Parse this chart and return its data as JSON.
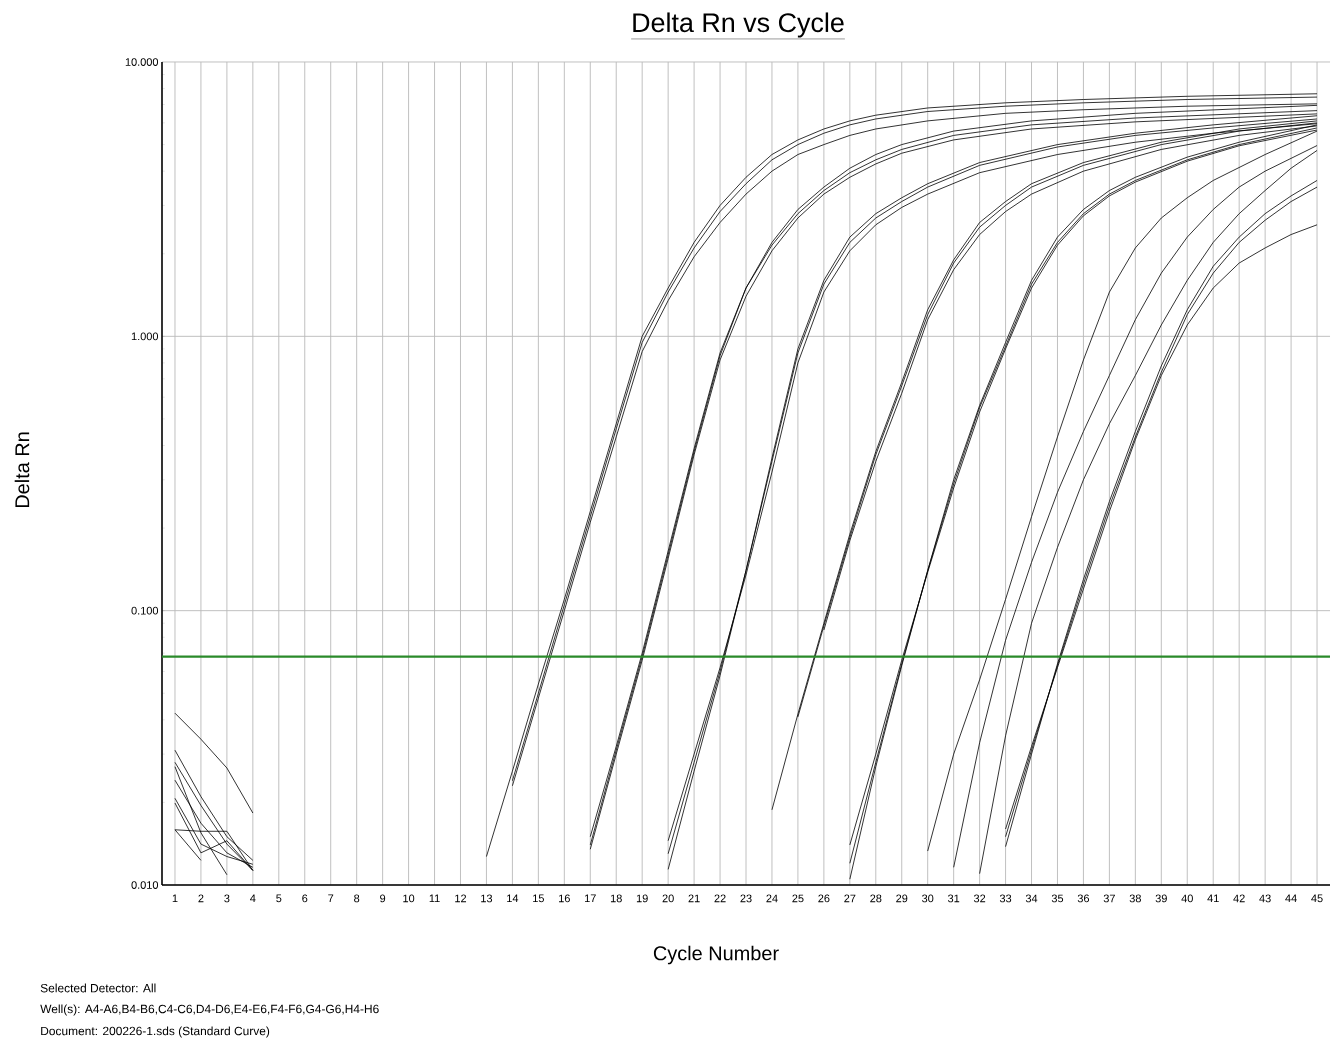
{
  "chart_data": {
    "type": "line",
    "title": "Delta Rn vs Cycle",
    "xlabel": "Cycle Number",
    "ylabel": "Delta Rn",
    "log": "y",
    "grid": true,
    "marker": "none",
    "line_style": "solid",
    "xlim": [
      0.5,
      45.5
    ],
    "xticks": [
      1,
      2,
      3,
      4,
      5,
      6,
      7,
      8,
      9,
      10,
      11,
      12,
      13,
      14,
      15,
      16,
      17,
      18,
      19,
      20,
      21,
      22,
      23,
      24,
      25,
      26,
      27,
      28,
      29,
      30,
      31,
      32,
      33,
      34,
      35,
      36,
      37,
      38,
      39,
      40,
      41,
      42,
      43,
      44,
      45
    ],
    "ylim": [
      0.01,
      10
    ],
    "yticks": [
      {
        "value": 0.01,
        "label": "0.010"
      },
      {
        "value": 0.1,
        "label": "0.100"
      },
      {
        "value": 1,
        "label": "1.000"
      },
      {
        "value": 10,
        "label": "10.000"
      }
    ],
    "ref_lines": [
      {
        "axis": "y",
        "value": 0.068,
        "color": "#2a8a2a"
      }
    ],
    "annotations": [
      "Selected Detector: All",
      "Well(s): A4-A6,B4-B6,C4-C6,D4-D6,E4-E6,F4-F6,G4-G6,H4-H6",
      "Document: 200226-1.sds (Standard Curve)"
    ],
    "series": [
      {
        "color": "#000000",
        "x": [
          13,
          14,
          15,
          16,
          17,
          18,
          19,
          20,
          21,
          22,
          23,
          24,
          25,
          26,
          27,
          28,
          30,
          33,
          36,
          40,
          45
        ],
        "values": [
          0.0127,
          0.026,
          0.054,
          0.11,
          0.23,
          0.48,
          1.0,
          1.5,
          2.2,
          3.0,
          3.8,
          4.6,
          5.2,
          5.7,
          6.1,
          6.4,
          6.8,
          7.1,
          7.3,
          7.5,
          7.66
        ]
      },
      {
        "color": "#000000",
        "x": [
          14,
          15,
          16,
          17,
          18,
          19,
          20,
          21,
          22,
          23,
          24,
          25,
          26,
          27,
          28,
          30,
          33,
          36,
          40,
          45
        ],
        "values": [
          0.024,
          0.05,
          0.105,
          0.22,
          0.46,
          0.95,
          1.45,
          2.1,
          2.85,
          3.6,
          4.4,
          5.0,
          5.5,
          5.9,
          6.2,
          6.6,
          6.9,
          7.1,
          7.3,
          7.45
        ]
      },
      {
        "color": "#000000",
        "x": [
          14,
          15,
          16,
          17,
          18,
          19,
          20,
          21,
          22,
          23,
          24,
          25,
          26,
          27,
          28,
          30,
          33,
          36,
          40,
          45
        ],
        "values": [
          0.023,
          0.048,
          0.1,
          0.21,
          0.43,
          0.88,
          1.35,
          1.95,
          2.6,
          3.3,
          4.0,
          4.6,
          5.0,
          5.4,
          5.7,
          6.1,
          6.5,
          6.7,
          6.9,
          7.04
        ]
      },
      {
        "color": "#000000",
        "x": [
          17,
          18,
          19,
          20,
          21,
          22,
          23,
          24,
          25,
          26,
          27,
          28,
          29,
          31,
          34,
          38,
          45
        ],
        "values": [
          0.014,
          0.031,
          0.068,
          0.16,
          0.38,
          0.85,
          1.5,
          2.2,
          2.9,
          3.5,
          4.1,
          4.6,
          5.0,
          5.6,
          6.1,
          6.5,
          6.95
        ]
      },
      {
        "color": "#000000",
        "x": [
          17,
          18,
          19,
          20,
          21,
          22,
          23,
          24,
          25,
          26,
          27,
          28,
          29,
          31,
          34,
          38,
          45
        ],
        "values": [
          0.015,
          0.032,
          0.07,
          0.165,
          0.39,
          0.87,
          1.5,
          2.15,
          2.8,
          3.4,
          3.95,
          4.4,
          4.8,
          5.4,
          5.9,
          6.25,
          6.65
        ]
      },
      {
        "color": "#000000",
        "x": [
          17,
          18,
          19,
          20,
          21,
          22,
          23,
          24,
          25,
          26,
          27,
          28,
          29,
          31,
          34,
          38,
          45
        ],
        "values": [
          0.0135,
          0.03,
          0.066,
          0.155,
          0.37,
          0.82,
          1.4,
          2.05,
          2.7,
          3.3,
          3.8,
          4.25,
          4.65,
          5.2,
          5.7,
          6.05,
          6.47
        ]
      },
      {
        "color": "#000000",
        "x": [
          20,
          21,
          22,
          23,
          24,
          25,
          26,
          27,
          28,
          29,
          30,
          32,
          35,
          38,
          41,
          45
        ],
        "values": [
          0.0114,
          0.026,
          0.058,
          0.14,
          0.36,
          0.9,
          1.6,
          2.3,
          2.8,
          3.2,
          3.6,
          4.3,
          5.0,
          5.5,
          5.9,
          6.37
        ]
      },
      {
        "color": "#000000",
        "x": [
          20,
          21,
          22,
          23,
          24,
          25,
          26,
          27,
          28,
          29,
          30,
          32,
          35,
          38,
          41,
          45
        ],
        "values": [
          0.013,
          0.028,
          0.06,
          0.14,
          0.35,
          0.87,
          1.55,
          2.2,
          2.7,
          3.1,
          3.5,
          4.2,
          4.9,
          5.4,
          5.75,
          6.2
        ]
      },
      {
        "color": "#000000",
        "x": [
          20,
          21,
          22,
          23,
          24,
          25,
          26,
          27,
          28,
          29,
          30,
          32,
          35,
          38,
          41,
          45
        ],
        "values": [
          0.0145,
          0.03,
          0.062,
          0.135,
          0.32,
          0.8,
          1.45,
          2.05,
          2.55,
          2.95,
          3.3,
          3.95,
          4.6,
          5.1,
          5.5,
          5.96
        ]
      },
      {
        "color": "#000000",
        "x": [
          24,
          25,
          26,
          27,
          28,
          29,
          30,
          31,
          32,
          33,
          34,
          36,
          39,
          42,
          45
        ],
        "values": [
          0.0188,
          0.042,
          0.09,
          0.19,
          0.38,
          0.68,
          1.25,
          1.9,
          2.6,
          3.1,
          3.6,
          4.3,
          5.1,
          5.7,
          6.1
        ]
      },
      {
        "color": "#000000",
        "x": [
          25,
          26,
          27,
          28,
          29,
          30,
          31,
          32,
          33,
          34,
          36,
          39,
          42,
          45
        ],
        "values": [
          0.041,
          0.088,
          0.185,
          0.37,
          0.66,
          1.2,
          1.85,
          2.5,
          3.0,
          3.5,
          4.2,
          5.0,
          5.6,
          6.0
        ]
      },
      {
        "color": "#000000",
        "x": [
          26,
          27,
          28,
          29,
          30,
          31,
          32,
          33,
          34,
          36,
          39,
          42,
          45
        ],
        "values": [
          0.085,
          0.18,
          0.35,
          0.62,
          1.15,
          1.75,
          2.35,
          2.85,
          3.3,
          4.0,
          4.8,
          5.4,
          5.85
        ]
      },
      {
        "color": "#000000",
        "x": [
          27,
          28,
          29,
          30,
          31,
          32,
          33,
          34,
          35,
          36,
          37,
          38,
          40,
          42,
          45
        ],
        "values": [
          0.0105,
          0.027,
          0.063,
          0.14,
          0.3,
          0.56,
          0.95,
          1.6,
          2.3,
          2.9,
          3.4,
          3.8,
          4.5,
          5.1,
          5.9
        ]
      },
      {
        "color": "#000000",
        "x": [
          27,
          28,
          29,
          30,
          31,
          32,
          33,
          34,
          35,
          36,
          37,
          38,
          40,
          42,
          45
        ],
        "values": [
          0.012,
          0.028,
          0.064,
          0.14,
          0.29,
          0.55,
          0.92,
          1.55,
          2.2,
          2.8,
          3.3,
          3.7,
          4.4,
          5.0,
          5.75
        ]
      },
      {
        "color": "#000000",
        "x": [
          27,
          28,
          29,
          30,
          31,
          32,
          33,
          34,
          35,
          36,
          37,
          38,
          40,
          42,
          45
        ],
        "values": [
          0.014,
          0.03,
          0.066,
          0.138,
          0.28,
          0.53,
          0.9,
          1.5,
          2.15,
          2.75,
          3.25,
          3.65,
          4.35,
          4.95,
          5.65
        ]
      },
      {
        "color": "#000000",
        "x": [
          30,
          31,
          32,
          33,
          34,
          35,
          36,
          37,
          38,
          39,
          40,
          41,
          43,
          45
        ],
        "values": [
          0.0133,
          0.03,
          0.056,
          0.11,
          0.22,
          0.43,
          0.82,
          1.45,
          2.1,
          2.7,
          3.2,
          3.7,
          4.6,
          5.6
        ]
      },
      {
        "color": "#000000",
        "x": [
          31,
          32,
          33,
          34,
          35,
          36,
          37,
          38,
          39,
          40,
          41,
          42,
          43,
          45
        ],
        "values": [
          0.0116,
          0.033,
          0.078,
          0.15,
          0.27,
          0.45,
          0.72,
          1.15,
          1.7,
          2.3,
          2.9,
          3.5,
          4.0,
          4.96
        ]
      },
      {
        "color": "#000000",
        "x": [
          32,
          33,
          34,
          35,
          36,
          37,
          38,
          39,
          40,
          41,
          42,
          43,
          44,
          45
        ],
        "values": [
          0.011,
          0.035,
          0.09,
          0.17,
          0.3,
          0.48,
          0.72,
          1.1,
          1.6,
          2.2,
          2.8,
          3.4,
          4.1,
          4.76
        ]
      },
      {
        "color": "#000000",
        "x": [
          33,
          34,
          35,
          36,
          37,
          38,
          39,
          40,
          41,
          42,
          43,
          44,
          45
        ],
        "values": [
          0.0138,
          0.03,
          0.064,
          0.13,
          0.25,
          0.45,
          0.78,
          1.25,
          1.8,
          2.3,
          2.8,
          3.25,
          3.7
        ]
      },
      {
        "color": "#000000",
        "x": [
          33,
          34,
          35,
          36,
          37,
          38,
          39,
          40,
          41,
          42,
          43,
          44,
          45
        ],
        "values": [
          0.015,
          0.031,
          0.063,
          0.125,
          0.24,
          0.43,
          0.74,
          1.2,
          1.7,
          2.2,
          2.65,
          3.1,
          3.5
        ]
      },
      {
        "color": "#000000",
        "x": [
          33,
          34,
          35,
          36,
          37,
          38,
          39,
          40,
          41,
          42,
          43,
          44,
          45
        ],
        "values": [
          0.016,
          0.032,
          0.062,
          0.12,
          0.23,
          0.42,
          0.72,
          1.1,
          1.5,
          1.85,
          2.1,
          2.35,
          2.55
        ]
      },
      {
        "color": "#000000",
        "x": [
          1,
          2,
          3,
          4
        ],
        "values": [
          0.0423,
          0.034,
          0.0267,
          0.0183
        ]
      },
      {
        "color": "#000000",
        "x": [
          1,
          2,
          3,
          4
        ],
        "values": [
          0.031,
          0.021,
          0.015,
          0.0123
        ]
      },
      {
        "color": "#000000",
        "x": [
          1,
          2,
          3,
          4
        ],
        "values": [
          0.028,
          0.0195,
          0.0141,
          0.0113
        ]
      },
      {
        "color": "#000000",
        "x": [
          1,
          2,
          3
        ],
        "values": [
          0.027,
          0.0155,
          0.0109
        ]
      },
      {
        "color": "#000000",
        "x": [
          1,
          2,
          3,
          4
        ],
        "values": [
          0.0241,
          0.0168,
          0.0131,
          0.0116
        ]
      },
      {
        "color": "#000000",
        "x": [
          1,
          2,
          3,
          4
        ],
        "values": [
          0.0159,
          0.0157,
          0.0157,
          0.0113
        ]
      },
      {
        "color": "#000000",
        "x": [
          1,
          2,
          3,
          4
        ],
        "values": [
          0.0199,
          0.0131,
          0.0145,
          0.0113
        ]
      },
      {
        "color": "#000000",
        "x": [
          1,
          2,
          3,
          4
        ],
        "values": [
          0.0207,
          0.0141,
          0.0127,
          0.0119
        ]
      },
      {
        "color": "#000000",
        "x": [
          1,
          2
        ],
        "values": [
          0.0159,
          0.0123
        ]
      }
    ]
  }
}
